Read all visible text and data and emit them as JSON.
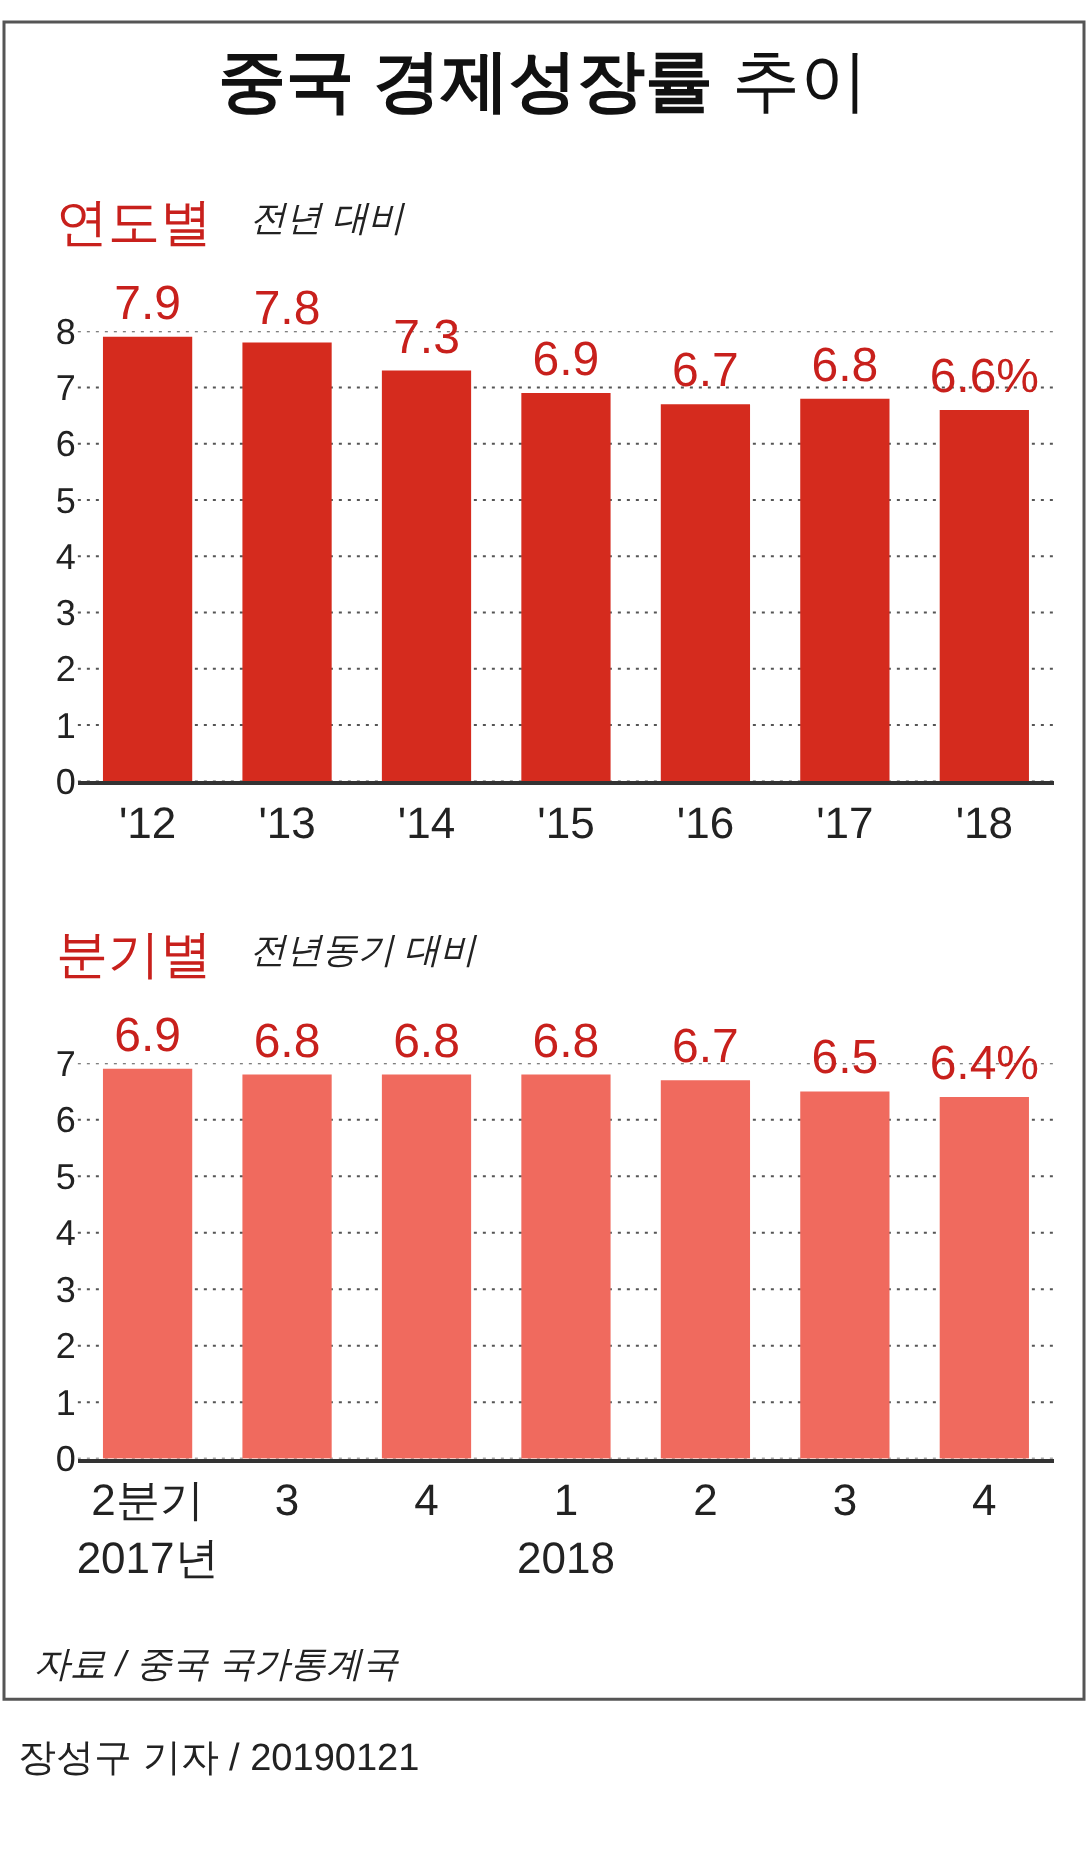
{
  "chart_data": [
    {
      "type": "bar",
      "title": "중국 경제성장률 추이",
      "subtitle": "연도별",
      "ylabel": "전년 대비",
      "categories": [
        "'12",
        "'13",
        "'14",
        "'15",
        "'16",
        "'17",
        "'18"
      ],
      "values": [
        7.9,
        7.8,
        7.3,
        6.9,
        6.7,
        6.8,
        6.6
      ],
      "value_labels": [
        "7.9",
        "7.8",
        "7.3",
        "6.9",
        "6.7",
        "6.8",
        "6.6%"
      ],
      "color": "#d52b1e",
      "ylim": [
        0,
        8
      ],
      "yticks": [
        0,
        1,
        2,
        3,
        4,
        5,
        6,
        7,
        8
      ],
      "grid": "y"
    },
    {
      "type": "bar",
      "title": "분기별",
      "ylabel": "전년동기 대비",
      "categories": [
        "2분기\n2017년",
        "3",
        "4",
        "1\n2018",
        "2",
        "3",
        "4"
      ],
      "values": [
        6.9,
        6.8,
        6.8,
        6.8,
        6.7,
        6.5,
        6.4
      ],
      "value_labels": [
        "6.9",
        "6.8",
        "6.8",
        "6.8",
        "6.7",
        "6.5",
        "6.4%"
      ],
      "color": "#f06a5e",
      "ylim": [
        0,
        7
      ],
      "yticks": [
        0,
        1,
        2,
        3,
        4,
        5,
        6,
        7
      ],
      "grid": "y",
      "annotations": [
        "자료 / 중국 국가통계국",
        "장성구 기자 / 20190121"
      ]
    }
  ]
}
